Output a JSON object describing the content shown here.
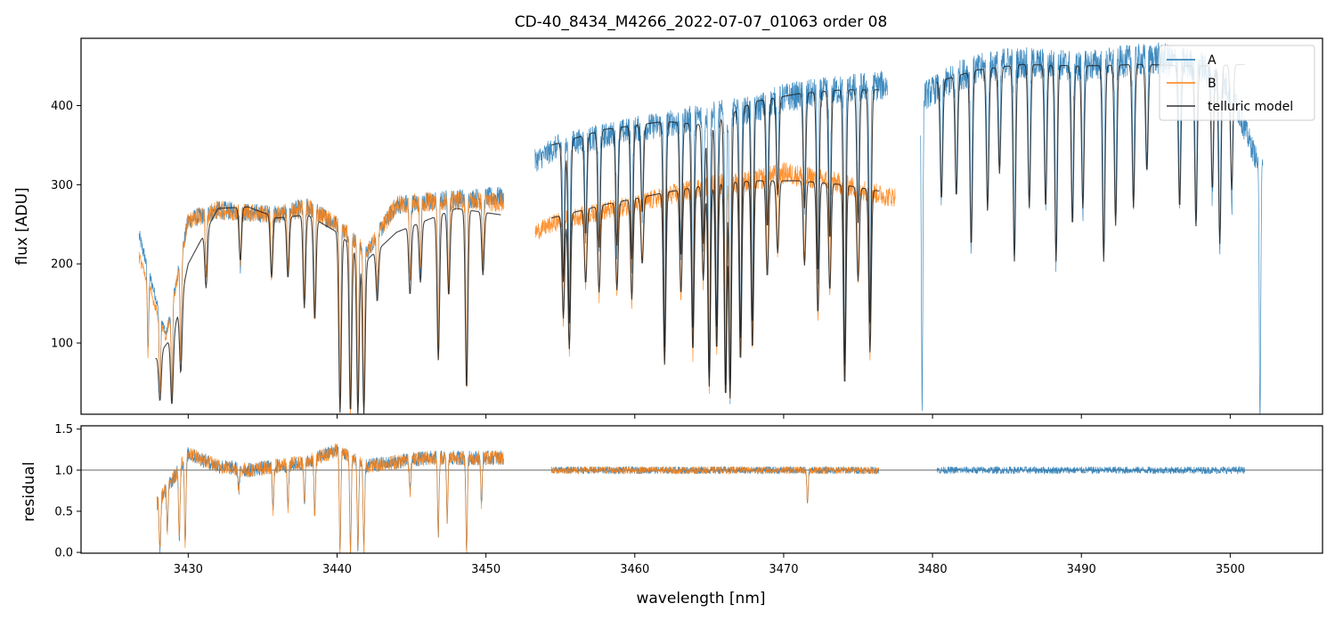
{
  "chart_data": [
    {
      "panel": "top",
      "type": "line",
      "title": "CD-40_8434_M4266_2022-07-07_01063  order 08",
      "xlabel": "",
      "ylabel": "flux [ADU]",
      "xlim": [
        3422.8,
        3506.2
      ],
      "ylim": [
        10,
        485
      ],
      "yticks": [
        100,
        200,
        300,
        400
      ],
      "xticks": [
        3430,
        3440,
        3450,
        3460,
        3470,
        3480,
        3490,
        3500
      ],
      "legend": {
        "position": "top-right",
        "entries": [
          {
            "label": "A",
            "color": "#1f77b4"
          },
          {
            "label": "B",
            "color": "#ff7f0e"
          },
          {
            "label": "telluric model",
            "color": "#333333"
          }
        ]
      },
      "series": [
        {
          "name": "A",
          "color": "#1f77b4",
          "segments": [
            {
              "x_start": 3426.7,
              "x_end": 3451.2,
              "levels": [
                [
                  3426.7,
                  235
                ],
                [
                  3428.5,
                  110
                ],
                [
                  3430,
                  255
                ],
                [
                  3432,
                  268
                ],
                [
                  3436,
                  262
                ],
                [
                  3438,
                  272
                ],
                [
                  3440,
                  250
                ],
                [
                  3442,
                  215
                ],
                [
                  3444,
                  275
                ],
                [
                  3446,
                  278
                ],
                [
                  3448,
                  282
                ],
                [
                  3451,
                  285
                ]
              ]
            },
            {
              "x_start": 3453.3,
              "x_end": 3477.0,
              "levels": [
                [
                  3453.3,
                  330
                ],
                [
                  3455,
                  350
                ],
                [
                  3460,
                  370
                ],
                [
                  3463,
                  380
                ],
                [
                  3465,
                  388
                ],
                [
                  3468,
                  395
                ],
                [
                  3470,
                  410
                ],
                [
                  3473,
                  418
                ],
                [
                  3476,
                  425
                ]
              ]
            },
            {
              "x_start": 3479.2,
              "x_end": 3502.2,
              "levels": [
                [
                  3479.2,
                  410
                ],
                [
                  3482,
                  440
                ],
                [
                  3485,
                  455
                ],
                [
                  3490,
                  450
                ],
                [
                  3495,
                  460
                ],
                [
                  3498,
                  450
                ],
                [
                  3500,
                  420
                ],
                [
                  3502,
                  320
                ]
              ]
            }
          ]
        },
        {
          "name": "B",
          "color": "#ff7f0e",
          "segments": [
            {
              "x_start": 3426.7,
              "x_end": 3451.2,
              "levels": [
                [
                  3426.7,
                  210
                ],
                [
                  3428.5,
                  105
                ],
                [
                  3430,
                  255
                ],
                [
                  3432,
                  268
                ],
                [
                  3436,
                  262
                ],
                [
                  3438,
                  272
                ],
                [
                  3440,
                  250
                ],
                [
                  3442,
                  215
                ],
                [
                  3444,
                  275
                ],
                [
                  3446,
                  278
                ],
                [
                  3448,
                  280
                ],
                [
                  3451,
                  278
                ]
              ]
            },
            {
              "x_start": 3453.3,
              "x_end": 3477.5,
              "levels": [
                [
                  3453.3,
                  240
                ],
                [
                  3455,
                  255
                ],
                [
                  3460,
                  275
                ],
                [
                  3465,
                  300
                ],
                [
                  3468,
                  305
                ],
                [
                  3470,
                  315
                ],
                [
                  3473,
                  305
                ],
                [
                  3477,
                  285
                ]
              ]
            }
          ]
        },
        {
          "name": "telluric model",
          "color": "#222222",
          "segments": [
            {
              "x_start": 3427.8,
              "x_end": 3451.0,
              "levels": [
                [
                  3427.8,
                  80
                ],
                [
                  3429,
                  110
                ],
                [
                  3430,
                  200
                ],
                [
                  3432,
                  270
                ],
                [
                  3434,
                  272
                ],
                [
                  3436,
                  258
                ],
                [
                  3438,
                  262
                ],
                [
                  3440,
                  240
                ],
                [
                  3442,
                  205
                ],
                [
                  3444,
                  240
                ],
                [
                  3446,
                  255
                ],
                [
                  3448,
                  270
                ],
                [
                  3451,
                  262
                ]
              ]
            },
            {
              "x_start": 3454.4,
              "x_end": 3476.4,
              "levels": [
                [
                  3454.4,
                  350
                ],
                [
                  3458,
                  370
                ],
                [
                  3462,
                  380
                ],
                [
                  3465,
                  375
                ],
                [
                  3468,
                  405
                ],
                [
                  3471,
                  415
                ],
                [
                  3474,
                  420
                ],
                [
                  3476.4,
                  420
                ]
              ]
            },
            {
              "x_start": 3454.4,
              "x_end": 3476.4,
              "levels": [
                [
                  3454.4,
                  258
                ],
                [
                  3458,
                  275
                ],
                [
                  3462,
                  290
                ],
                [
                  3465,
                  300
                ],
                [
                  3468,
                  305
                ],
                [
                  3471,
                  305
                ],
                [
                  3474,
                  300
                ],
                [
                  3476.4,
                  292
                ]
              ]
            },
            {
              "x_start": 3480.3,
              "x_end": 3501.0,
              "levels": [
                [
                  3480.3,
                  430
                ],
                [
                  3483,
                  445
                ],
                [
                  3486,
                  452
                ],
                [
                  3490,
                  450
                ],
                [
                  3494,
                  452
                ],
                [
                  3498,
                  450
                ],
                [
                  3501,
                  452
                ]
              ]
            }
          ]
        }
      ],
      "absorption_lines": [
        [
          3427.3,
          0.5
        ],
        [
          3428.1,
          0.7
        ],
        [
          3428.9,
          0.8
        ],
        [
          3429.5,
          0.6
        ],
        [
          3431.2,
          0.3
        ],
        [
          3433.5,
          0.25
        ],
        [
          3435.6,
          0.3
        ],
        [
          3436.7,
          0.3
        ],
        [
          3437.8,
          0.45
        ],
        [
          3438.5,
          0.5
        ],
        [
          3440.2,
          0.95
        ],
        [
          3440.9,
          0.95
        ],
        [
          3441.4,
          0.95
        ],
        [
          3441.8,
          0.95
        ],
        [
          3442.7,
          0.3
        ],
        [
          3444.9,
          0.35
        ],
        [
          3445.6,
          0.3
        ],
        [
          3446.8,
          0.7
        ],
        [
          3447.5,
          0.4
        ],
        [
          3448.7,
          0.85
        ],
        [
          3449.8,
          0.3
        ],
        [
          3455.2,
          0.5
        ],
        [
          3455.6,
          0.65
        ],
        [
          3456.7,
          0.35
        ],
        [
          3457.6,
          0.4
        ],
        [
          3458.8,
          0.4
        ],
        [
          3459.8,
          0.45
        ],
        [
          3460.5,
          0.3
        ],
        [
          3462.0,
          0.75
        ],
        [
          3463.1,
          0.45
        ],
        [
          3463.9,
          0.7
        ],
        [
          3464.6,
          0.4
        ],
        [
          3465.0,
          0.85
        ],
        [
          3465.5,
          0.7
        ],
        [
          3466.1,
          0.9
        ],
        [
          3466.4,
          0.9
        ],
        [
          3467.1,
          0.75
        ],
        [
          3467.9,
          0.7
        ],
        [
          3468.9,
          0.4
        ],
        [
          3469.6,
          0.3
        ],
        [
          3471.4,
          0.35
        ],
        [
          3472.3,
          0.55
        ],
        [
          3473.1,
          0.45
        ],
        [
          3474.1,
          0.85
        ],
        [
          3475.0,
          0.4
        ],
        [
          3475.8,
          0.7
        ],
        [
          3479.3,
          0.95
        ],
        [
          3480.6,
          0.35
        ],
        [
          3481.6,
          0.35
        ],
        [
          3482.6,
          0.5
        ],
        [
          3483.7,
          0.4
        ],
        [
          3484.5,
          0.3
        ],
        [
          3485.5,
          0.55
        ],
        [
          3486.5,
          0.4
        ],
        [
          3487.6,
          0.4
        ],
        [
          3488.3,
          0.55
        ],
        [
          3489.4,
          0.45
        ],
        [
          3490.1,
          0.4
        ],
        [
          3491.5,
          0.55
        ],
        [
          3492.3,
          0.45
        ],
        [
          3493.5,
          0.4
        ],
        [
          3494.4,
          0.3
        ],
        [
          3496.6,
          0.4
        ],
        [
          3497.7,
          0.45
        ],
        [
          3498.8,
          0.35
        ],
        [
          3499.3,
          0.5
        ],
        [
          3500.1,
          0.35
        ],
        [
          3502.0,
          0.95
        ]
      ]
    },
    {
      "panel": "bottom",
      "type": "line",
      "xlabel": "wavelength [nm]",
      "ylabel": "residual",
      "xlim": [
        3422.8,
        3506.2
      ],
      "ylim": [
        -0.01,
        1.54
      ],
      "yticks": [
        0.0,
        0.5,
        1.0,
        1.5
      ],
      "ytick_labels": [
        "0.0",
        "0.5",
        "1.0",
        "1.5"
      ],
      "xticks": [
        3430,
        3440,
        3450,
        3460,
        3470,
        3480,
        3490,
        3500
      ],
      "reference_line": 1.0,
      "series": [
        {
          "name": "A",
          "color": "#1f77b4",
          "segments": [
            {
              "x_start": 3427.9,
              "x_end": 3451.2,
              "levels": [
                [
                  3427.9,
                  0.6
                ],
                [
                  3429,
                  0.9
                ],
                [
                  3430,
                  1.2
                ],
                [
                  3432,
                  1.05
                ],
                [
                  3434,
                  1.0
                ],
                [
                  3436,
                  1.05
                ],
                [
                  3438,
                  1.1
                ],
                [
                  3440,
                  1.25
                ],
                [
                  3442,
                  1.05
                ],
                [
                  3444,
                  1.1
                ],
                [
                  3446,
                  1.15
                ],
                [
                  3448,
                  1.15
                ],
                [
                  3451,
                  1.15
                ]
              ]
            },
            {
              "x_start": 3454.4,
              "x_end": 3476.4,
              "levels": [
                [
                  3454.4,
                  1.0
                ],
                [
                  3460,
                  1.0
                ],
                [
                  3470,
                  1.0
                ],
                [
                  3476.4,
                  1.0
                ]
              ]
            },
            {
              "x_start": 3480.3,
              "x_end": 3501.0,
              "levels": [
                [
                  3480.3,
                  1.0
                ],
                [
                  3490,
                  1.0
                ],
                [
                  3501,
                  1.0
                ]
              ]
            }
          ]
        },
        {
          "name": "B",
          "color": "#ff7f0e",
          "segments": [
            {
              "x_start": 3427.9,
              "x_end": 3451.2,
              "levels": [
                [
                  3427.9,
                  0.6
                ],
                [
                  3429,
                  0.9
                ],
                [
                  3430,
                  1.2
                ],
                [
                  3432,
                  1.05
                ],
                [
                  3434,
                  1.0
                ],
                [
                  3436,
                  1.05
                ],
                [
                  3438,
                  1.1
                ],
                [
                  3440,
                  1.25
                ],
                [
                  3442,
                  1.05
                ],
                [
                  3444,
                  1.1
                ],
                [
                  3446,
                  1.15
                ],
                [
                  3448,
                  1.15
                ],
                [
                  3451,
                  1.15
                ]
              ]
            },
            {
              "x_start": 3454.4,
              "x_end": 3476.4,
              "levels": [
                [
                  3454.4,
                  1.0
                ],
                [
                  3460,
                  1.0
                ],
                [
                  3470,
                  1.0
                ],
                [
                  3476.4,
                  1.0
                ]
              ]
            }
          ]
        }
      ],
      "residual_dips": [
        [
          3428.1,
          0.0
        ],
        [
          3428.6,
          0.3
        ],
        [
          3429.4,
          0.2
        ],
        [
          3429.8,
          0.1
        ],
        [
          3433.4,
          0.75
        ],
        [
          3435.7,
          0.5
        ],
        [
          3436.7,
          0.55
        ],
        [
          3437.8,
          0.6
        ],
        [
          3438.5,
          0.45
        ],
        [
          3440.2,
          0.0
        ],
        [
          3440.9,
          0.0
        ],
        [
          3441.4,
          0.0
        ],
        [
          3441.8,
          0.0
        ],
        [
          3444.9,
          0.75
        ],
        [
          3446.8,
          0.2
        ],
        [
          3447.4,
          0.4
        ],
        [
          3448.7,
          0.0
        ],
        [
          3449.7,
          0.6
        ],
        [
          3471.6,
          0.6
        ]
      ]
    }
  ]
}
